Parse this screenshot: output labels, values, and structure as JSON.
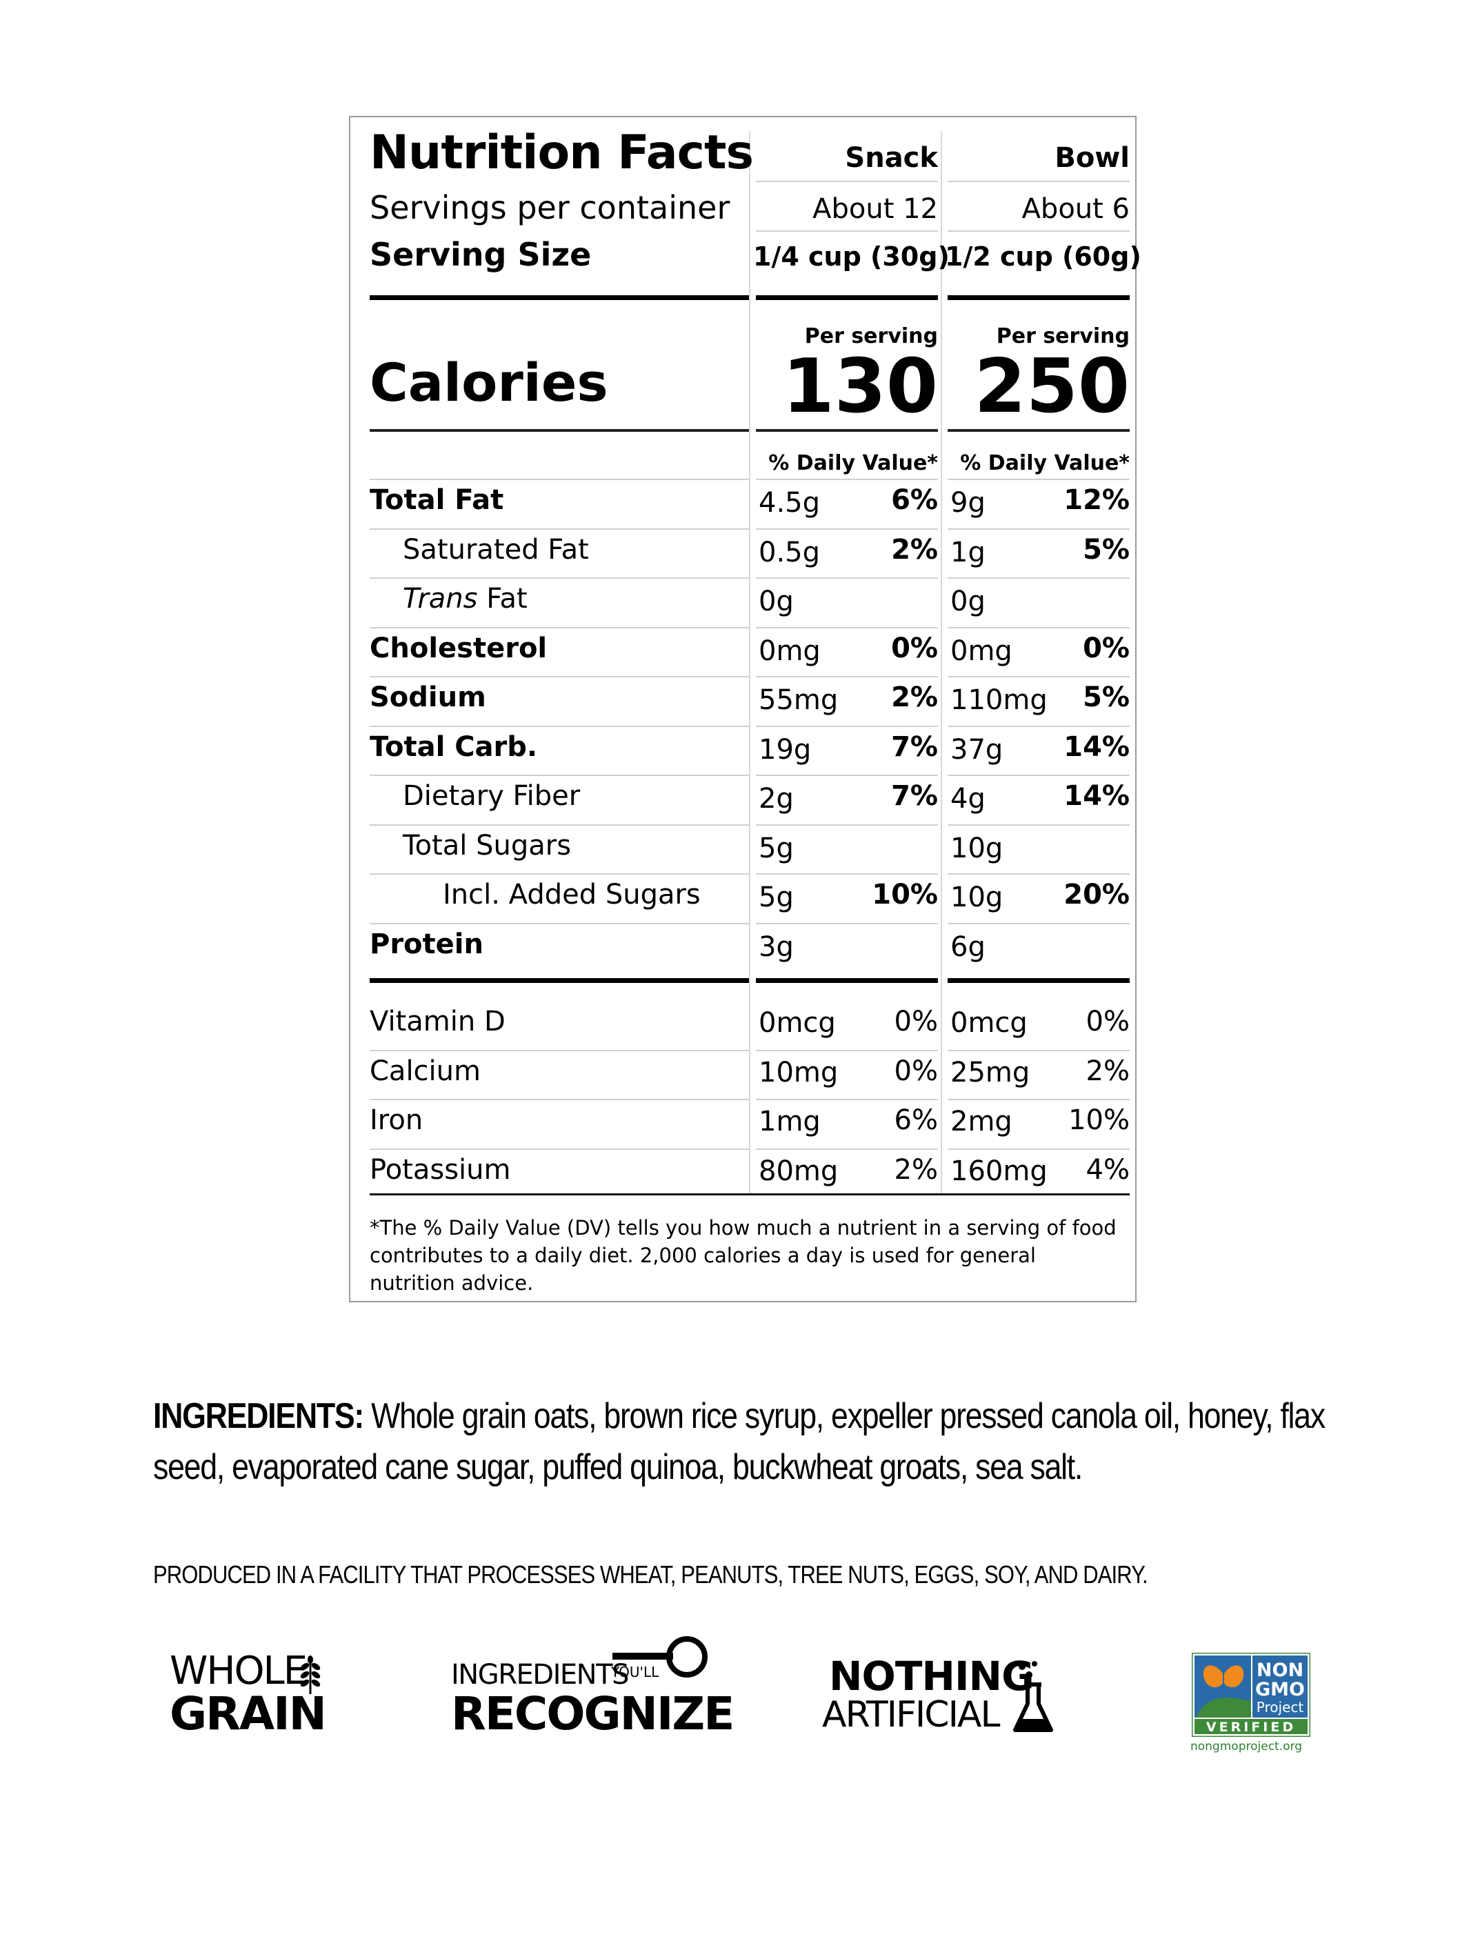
{
  "panel": {
    "title": "Nutrition Facts",
    "columns": [
      "Snack",
      "Bowl"
    ],
    "servings_label": "Servings per container",
    "servings": [
      "About 12",
      "About 6"
    ],
    "serving_size_label": "Serving Size",
    "serving_size": [
      "1/4 cup (30g)",
      "1/2 cup (60g)"
    ],
    "calories_label": "Calories",
    "per_serving": [
      "Per serving",
      "Per serving"
    ],
    "calories": [
      "130",
      "250"
    ],
    "dv_header": [
      "% Daily Value*",
      "% Daily Value*"
    ],
    "rows": [
      {
        "label": "Total Fat",
        "bold": true,
        "indent": 0,
        "snack_amt": "4.5g",
        "snack_pct": "6%",
        "bowl_amt": "9g",
        "bowl_pct": "12%"
      },
      {
        "label": "Saturated Fat",
        "bold": false,
        "indent": 1,
        "snack_amt": "0.5g",
        "snack_pct": "2%",
        "bowl_amt": "1g",
        "bowl_pct": "5%"
      },
      {
        "label_italic": "Trans",
        "label": " Fat",
        "bold": false,
        "indent": 1,
        "snack_amt": "0g",
        "snack_pct": "",
        "bowl_amt": "0g",
        "bowl_pct": ""
      },
      {
        "label": "Cholesterol",
        "bold": true,
        "indent": 0,
        "snack_amt": "0mg",
        "snack_pct": "0%",
        "bowl_amt": "0mg",
        "bowl_pct": "0%"
      },
      {
        "label": "Sodium",
        "bold": true,
        "indent": 0,
        "snack_amt": "55mg",
        "snack_pct": "2%",
        "bowl_amt": "110mg",
        "bowl_pct": "5%"
      },
      {
        "label": "Total Carb.",
        "bold": true,
        "indent": 0,
        "snack_amt": "19g",
        "snack_pct": "7%",
        "bowl_amt": "37g",
        "bowl_pct": "14%"
      },
      {
        "label": "Dietary Fiber",
        "bold": false,
        "indent": 1,
        "snack_amt": "2g",
        "snack_pct": "7%",
        "bowl_amt": "4g",
        "bowl_pct": "14%"
      },
      {
        "label": "Total Sugars",
        "bold": false,
        "indent": 1,
        "snack_amt": "5g",
        "snack_pct": "",
        "bowl_amt": "10g",
        "bowl_pct": ""
      },
      {
        "label": "Incl. Added Sugars",
        "bold": false,
        "indent": 2,
        "snack_amt": "5g",
        "snack_pct": "10%",
        "bowl_amt": "10g",
        "bowl_pct": "20%"
      },
      {
        "label": "Protein",
        "bold": true,
        "indent": 0,
        "snack_amt": "3g",
        "snack_pct": "",
        "bowl_amt": "6g",
        "bowl_pct": ""
      }
    ],
    "vitamins": [
      {
        "label": "Vitamin D",
        "snack_amt": "0mcg",
        "snack_pct": "0%",
        "bowl_amt": "0mcg",
        "bowl_pct": "0%"
      },
      {
        "label": "Calcium",
        "snack_amt": "10mg",
        "snack_pct": "0%",
        "bowl_amt": "25mg",
        "bowl_pct": "2%"
      },
      {
        "label": "Iron",
        "snack_amt": "1mg",
        "snack_pct": "6%",
        "bowl_amt": "2mg",
        "bowl_pct": "10%"
      },
      {
        "label": "Potassium",
        "snack_amt": "80mg",
        "snack_pct": "2%",
        "bowl_amt": "160mg",
        "bowl_pct": "4%"
      }
    ],
    "footnote": "*The % Daily Value (DV) tells you how much a nutrient in a serving of food contributes to a daily diet. 2,000 calories a day is used for general nutrition advice."
  },
  "ingredients": {
    "label": "INGREDIENTS:",
    "text": " Whole grain oats, brown rice syrup, expeller pressed canola oil, honey, flax seed, evaporated cane sugar, puffed quinoa, buckwheat groats, sea salt."
  },
  "allergen": "PRODUCED IN A FACILITY THAT PROCESSES WHEAT, PEANUTS, TREE NUTS, EGGS, SOY, AND DAIRY.",
  "badges": {
    "whole_top": "WHOLE",
    "whole_bottom": "GRAIN",
    "recognize_top": "INGREDIENTS",
    "recognize_small": "YOU'LL",
    "recognize_bottom": "RECOGNIZE",
    "nothing_top": "NOTHING",
    "nothing_bottom": "ARTIFICIAL",
    "nongmo_1": "NON",
    "nongmo_2": "GMO",
    "nongmo_3": "Project",
    "nongmo_4": "VERIFIED",
    "nongmo_url": "nongmoproject.org"
  },
  "colors": {
    "nongmo_blue": "#2a6aa8",
    "nongmo_green": "#3f8a3a",
    "nongmo_orange": "#f08a1c"
  }
}
